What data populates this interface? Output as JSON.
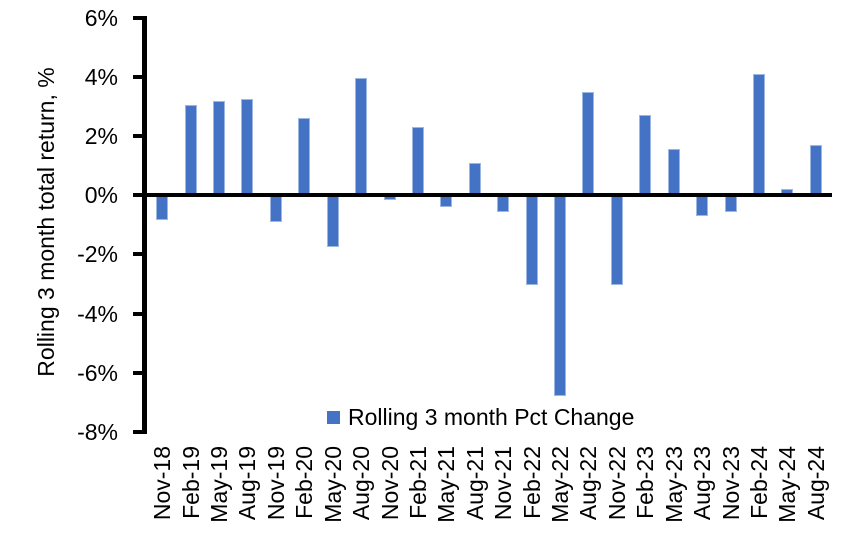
{
  "chart_data": {
    "type": "bar",
    "title": "",
    "xlabel": "",
    "ylabel": "Rolling 3 month total return, %",
    "ylim": [
      -8,
      6
    ],
    "y_tick_step": 2,
    "y_ticks": [
      6,
      4,
      2,
      0,
      -2,
      -4,
      -6,
      -8
    ],
    "y_tick_labels": [
      "6%",
      "4%",
      "2%",
      "0%",
      "-2%",
      "-4%",
      "-6%",
      "-8%"
    ],
    "grid": false,
    "legend_position": "bottom-center",
    "categories": [
      "Nov-18",
      "Feb-19",
      "May-19",
      "Aug-19",
      "Nov-19",
      "Feb-20",
      "May-20",
      "Aug-20",
      "Nov-20",
      "Feb-21",
      "May-21",
      "Aug-21",
      "Nov-21",
      "Feb-22",
      "May-22",
      "Aug-22",
      "Nov-22",
      "Feb-23",
      "May-23",
      "Aug-23",
      "Nov-23",
      "Feb-24",
      "May-24",
      "Aug-24"
    ],
    "series": [
      {
        "name": "Rolling 3 month Pct Change",
        "color": "#4472C4",
        "values": [
          -0.85,
          3.05,
          3.2,
          3.25,
          -0.9,
          2.6,
          -1.75,
          3.97,
          -0.15,
          2.3,
          -0.4,
          1.1,
          -0.55,
          -3.05,
          -6.8,
          3.5,
          -3.05,
          2.7,
          1.55,
          -0.7,
          -0.55,
          4.1,
          0.2,
          1.7
        ]
      }
    ],
    "colors": {
      "bar": "#4472C4",
      "axis": "#000000",
      "background": "#FFFFFF"
    }
  }
}
